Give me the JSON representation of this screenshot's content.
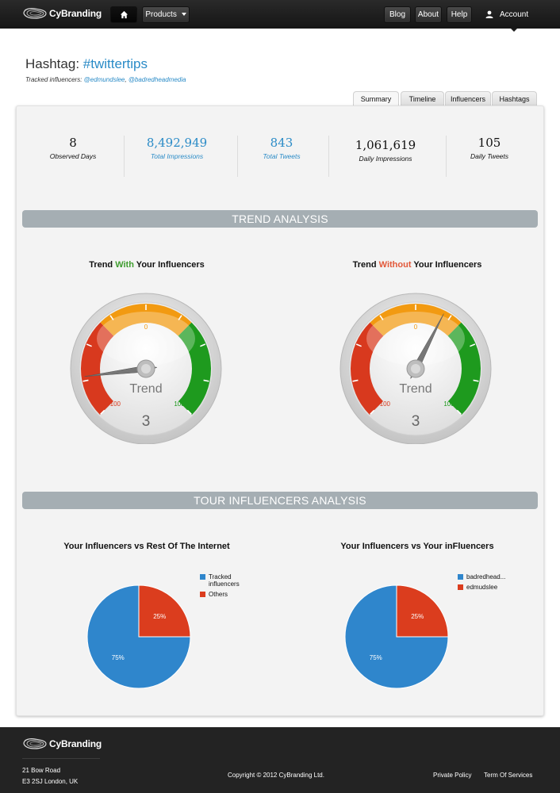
{
  "nav": {
    "brand": "CyBranding",
    "products": "Products",
    "blog": "Blog",
    "about": "About",
    "help": "Help",
    "account": "Account"
  },
  "header": {
    "title_prefix": "Hashtag: ",
    "hashtag": "#twittertips",
    "tracked_label": "Tracked influencers: ",
    "influencers": [
      "@edmundslee",
      "@badredheadmedia"
    ],
    "separator": ", "
  },
  "tabs": [
    "Summary",
    "Timeline",
    "Influencers",
    "Hashtags"
  ],
  "stats": [
    {
      "value": "8",
      "label": "Observed Days"
    },
    {
      "value": "8,492,949",
      "label": "Total Impressions"
    },
    {
      "value": "843",
      "label": "Total Tweets"
    },
    {
      "value": "1,061,619",
      "label": "Daily Impressions"
    },
    {
      "value": "105",
      "label": "Daily Tweets"
    }
  ],
  "trend": {
    "section_title": "TREND ANALYSIS",
    "with_title": {
      "a": "Trend ",
      "b": "With",
      "c": " Your Influencers"
    },
    "without_title": {
      "a": "Trend ",
      "b": "Without",
      "c": " Your Influencers"
    },
    "gauges": [
      {
        "center_label": "Trend",
        "min_label": "-100",
        "mid_label": "0",
        "max_label": "100",
        "value": 3,
        "needle_value": -72
      },
      {
        "center_label": "Trend",
        "min_label": "-100",
        "mid_label": "0",
        "max_label": "100",
        "value": 3,
        "needle_value": 20
      }
    ],
    "colors": {
      "red": "#d8391e",
      "orange": "#f29a11",
      "green": "#1e9a1e"
    }
  },
  "influencers_section": {
    "section_title": "TOUR INFLUENCERS ANALYSIS",
    "charts": [
      {
        "title": "Your Influencers vs Rest Of The Internet",
        "legend": [
          "Tracked influencers",
          "Others"
        ]
      },
      {
        "title": "Your Influencers vs Your inFluencers",
        "legend": [
          "badredhead...",
          "edmudslee"
        ]
      }
    ]
  },
  "chart_data": [
    {
      "type": "pie",
      "title": "Your Influencers vs Rest Of The Internet",
      "labels": [
        "Tracked influencers",
        "Others"
      ],
      "values": [
        75,
        25
      ],
      "value_labels": [
        "75%",
        "25%"
      ],
      "colors": [
        "#2f86cc",
        "#db3d1e"
      ]
    },
    {
      "type": "pie",
      "title": "Your Influencers vs Your inFluencers",
      "labels": [
        "badredhead...",
        "edmudslee"
      ],
      "values": [
        75,
        25
      ],
      "value_labels": [
        "75%",
        "25%"
      ],
      "colors": [
        "#2f86cc",
        "#db3d1e"
      ]
    }
  ],
  "footer": {
    "brand": "CyBranding",
    "address_line1": "21 Bow Road",
    "address_line2": "E3 2SJ London, UK",
    "copyright": "Copyright © 2012 CyBranding Ltd.",
    "privacy": "Private Policy",
    "terms": "Term Of Services"
  }
}
